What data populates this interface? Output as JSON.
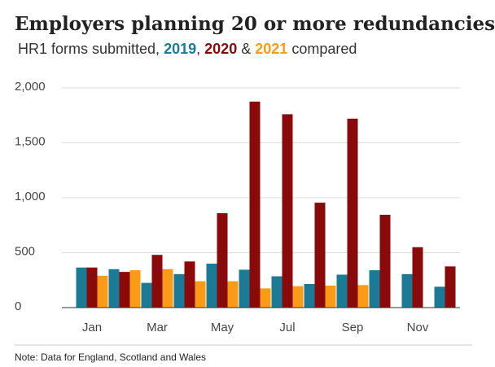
{
  "chart_data": {
    "type": "bar",
    "title": "Employers planning 20 or more redundancies",
    "subtitle_parts": [
      "HR1 forms submitted,",
      ",",
      "&",
      "compared"
    ],
    "note": "Note: Data for England, Scotland and Wales",
    "categories": [
      "Jan",
      null,
      "Mar",
      null,
      "May",
      null,
      "Jul",
      null,
      "Sep",
      null,
      "Nov",
      null
    ],
    "series": [
      {
        "name": "2019",
        "color": "#1b7b97",
        "values": [
          365,
          350,
          225,
          305,
          400,
          345,
          285,
          215,
          300,
          340,
          305,
          190
        ]
      },
      {
        "name": "2020",
        "color": "#8a0a0a",
        "values": [
          365,
          325,
          480,
          420,
          860,
          1875,
          1760,
          955,
          1720,
          845,
          550,
          375
        ]
      },
      {
        "name": "2021",
        "color": "#fa9a15",
        "values": [
          290,
          340,
          350,
          240,
          240,
          175,
          195,
          200,
          205,
          null,
          null,
          null
        ]
      }
    ],
    "ylim": [
      0,
      2000
    ],
    "yticks": [
      0,
      500,
      {
        "value": 1000,
        "label": "1,000"
      },
      {
        "value": 1500,
        "label": "1,500"
      },
      {
        "value": 2000,
        "label": "2,000"
      }
    ],
    "grid": true
  }
}
